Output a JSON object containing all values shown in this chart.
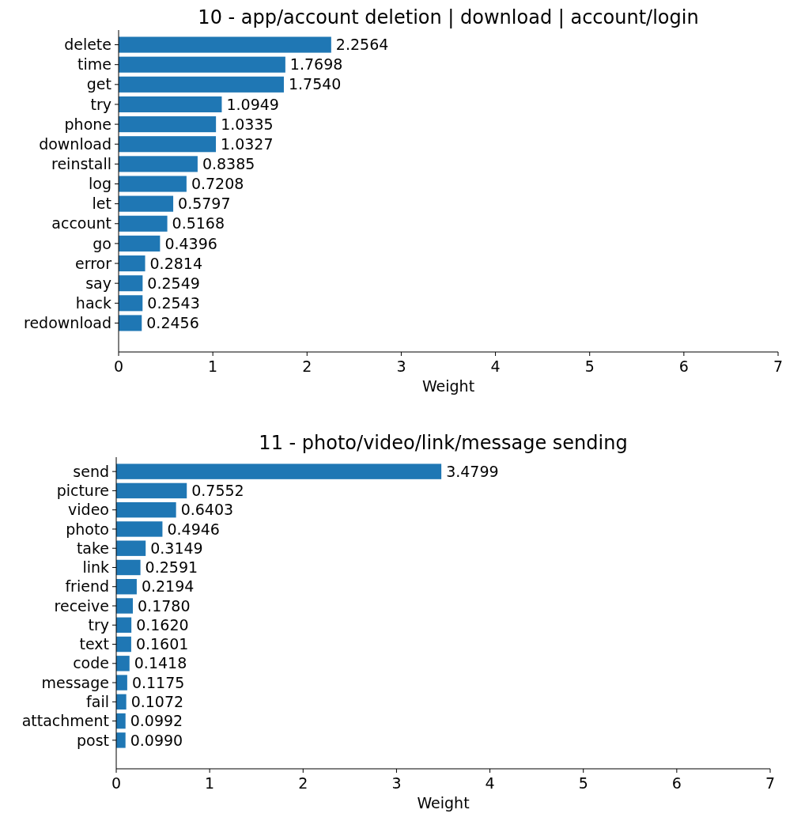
{
  "chart_data": [
    {
      "type": "bar",
      "orientation": "horizontal",
      "title": "10 - app/account deletion | download | account/login",
      "xlabel": "Weight",
      "categories": [
        "delete",
        "time",
        "get",
        "try",
        "phone",
        "download",
        "reinstall",
        "log",
        "let",
        "account",
        "go",
        "error",
        "say",
        "hack",
        "redownload"
      ],
      "values": [
        2.2564,
        1.7698,
        1.754,
        1.0949,
        1.0335,
        1.0327,
        0.8385,
        0.7208,
        0.5797,
        0.5168,
        0.4396,
        0.2814,
        0.2549,
        0.2543,
        0.2456
      ],
      "value_labels": [
        "2.2564",
        "1.7698",
        "1.7540",
        "1.0949",
        "1.0335",
        "1.0327",
        "0.8385",
        "0.7208",
        "0.5797",
        "0.5168",
        "0.4396",
        "0.2814",
        "0.2549",
        "0.2543",
        "0.2456"
      ],
      "color": "#1f77b4",
      "xlim": [
        0,
        7
      ],
      "xticks": [
        0,
        1,
        2,
        3,
        4,
        5,
        6,
        7
      ]
    },
    {
      "type": "bar",
      "orientation": "horizontal",
      "title": "11 - photo/video/link/message sending",
      "xlabel": "Weight",
      "categories": [
        "send",
        "picture",
        "video",
        "photo",
        "take",
        "link",
        "friend",
        "receive",
        "try",
        "text",
        "code",
        "message",
        "fail",
        "attachment",
        "post"
      ],
      "values": [
        3.4799,
        0.7552,
        0.6403,
        0.4946,
        0.3149,
        0.2591,
        0.2194,
        0.178,
        0.162,
        0.1601,
        0.1418,
        0.1175,
        0.1072,
        0.0992,
        0.099
      ],
      "value_labels": [
        "3.4799",
        "0.7552",
        "0.6403",
        "0.4946",
        "0.3149",
        "0.2591",
        "0.2194",
        "0.1780",
        "0.1620",
        "0.1601",
        "0.1418",
        "0.1175",
        "0.1072",
        "0.0992",
        "0.0990"
      ],
      "color": "#1f77b4",
      "xlim": [
        0,
        7
      ],
      "xticks": [
        0,
        1,
        2,
        3,
        4,
        5,
        6,
        7
      ]
    }
  ]
}
